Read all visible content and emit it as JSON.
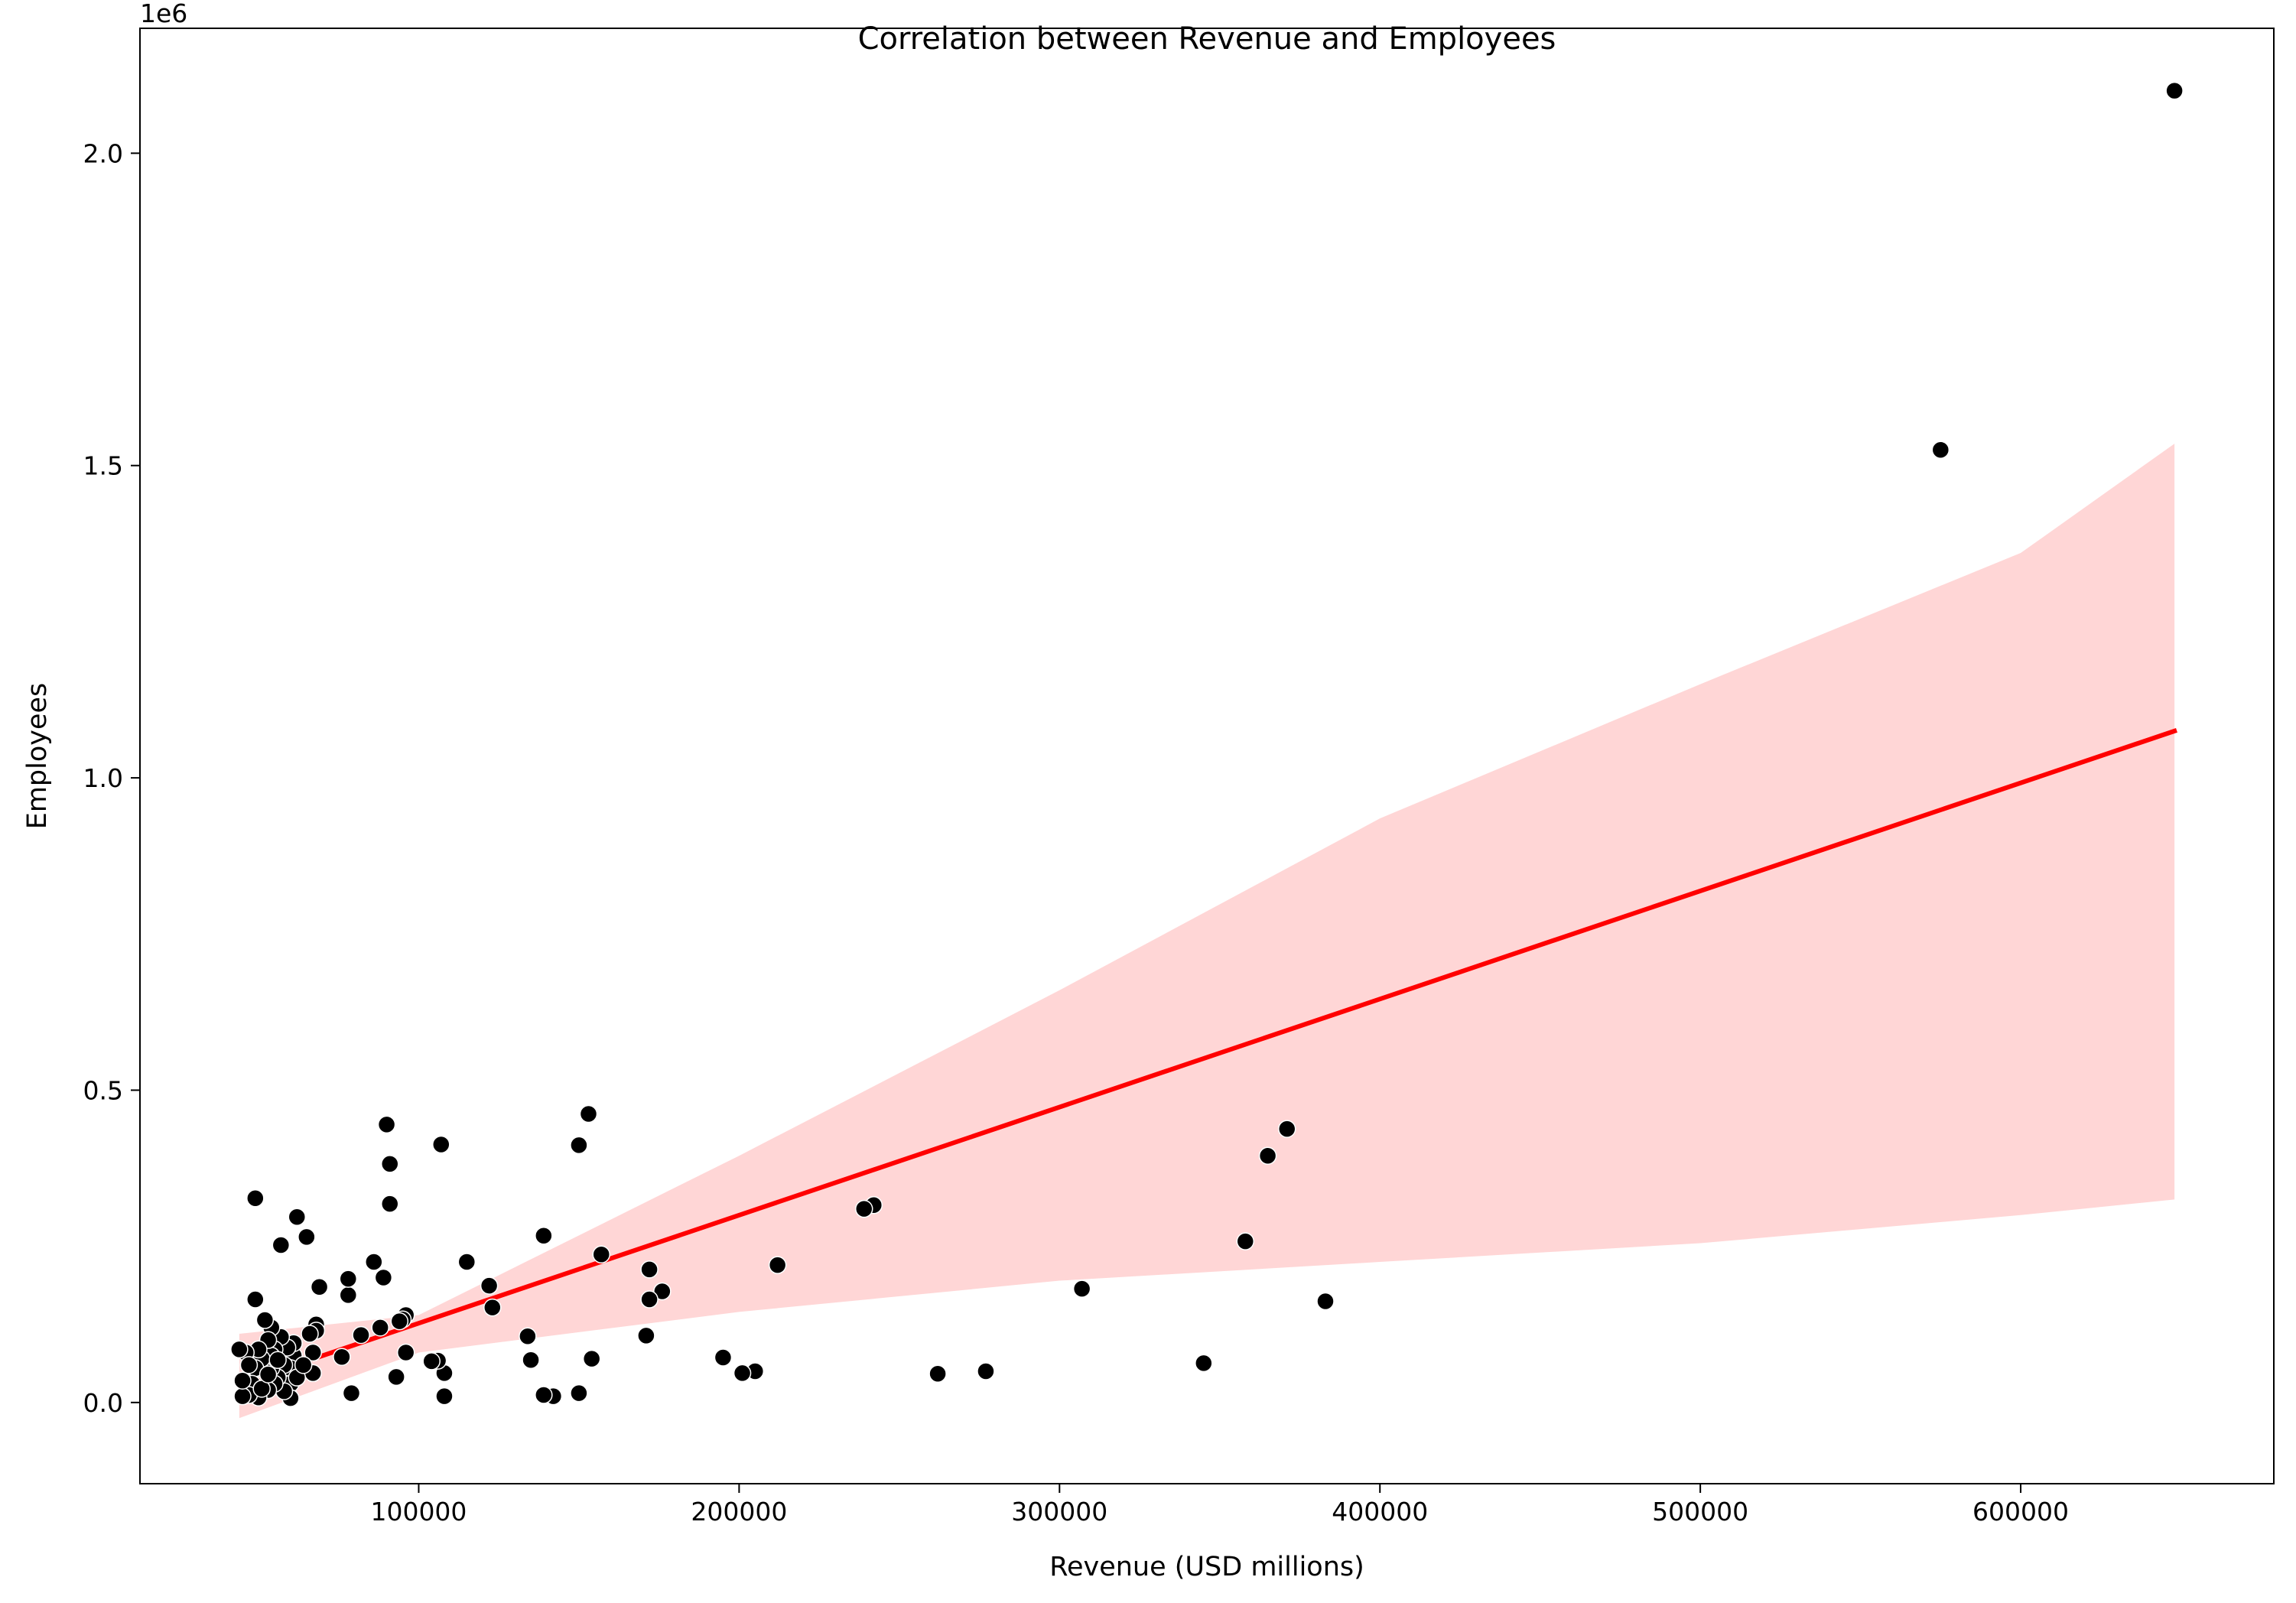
{
  "chart_data": {
    "type": "scatter",
    "title": "Correlation between Revenue and Employees",
    "xlabel": "Revenue (USD millions)",
    "ylabel": "Employees",
    "y_offset_label": "1e6",
    "xlim": [
      13000,
      679000
    ],
    "ylim": [
      -130000,
      2200000
    ],
    "xticks": [
      100000,
      200000,
      300000,
      400000,
      500000,
      600000
    ],
    "xtick_labels": [
      "100000",
      "200000",
      "300000",
      "400000",
      "500000",
      "600000"
    ],
    "yticks": [
      0,
      500000,
      1000000,
      1500000,
      2000000
    ],
    "ytick_labels": [
      "0.0",
      "0.5",
      "1.0",
      "1.5",
      "2.0"
    ],
    "grid": false,
    "colors": {
      "points": "#000000",
      "point_edge": "#ffffff",
      "regression_line": "#ff0000",
      "confidence_band": "#ffd6d6"
    },
    "regression": {
      "x": [
        44000,
        648000
      ],
      "y": [
        30000,
        1075000
      ]
    },
    "confidence_band": {
      "x": [
        44000,
        100000,
        200000,
        300000,
        400000,
        500000,
        600000,
        648000
      ],
      "lower": [
        -25000,
        80000,
        145000,
        195000,
        225000,
        255000,
        300000,
        325000
      ],
      "upper": [
        110000,
        140000,
        395000,
        660000,
        935000,
        1150000,
        1360000,
        1535000
      ]
    },
    "points": [
      [
        648000,
        2100000
      ],
      [
        575000,
        1525000
      ],
      [
        371000,
        438000
      ],
      [
        365000,
        395000
      ],
      [
        358000,
        258000
      ],
      [
        383000,
        162000
      ],
      [
        345000,
        63000
      ],
      [
        307000,
        182000
      ],
      [
        277000,
        50000
      ],
      [
        262000,
        46000
      ],
      [
        242000,
        316000
      ],
      [
        239000,
        310000
      ],
      [
        212000,
        220000
      ],
      [
        205000,
        50000
      ],
      [
        201000,
        47000
      ],
      [
        195000,
        72000
      ],
      [
        176000,
        178000
      ],
      [
        172000,
        213000
      ],
      [
        172000,
        165000
      ],
      [
        171000,
        107000
      ],
      [
        157000,
        237000
      ],
      [
        154000,
        70000
      ],
      [
        153000,
        462000
      ],
      [
        150000,
        412000
      ],
      [
        150000,
        15000
      ],
      [
        142000,
        10000
      ],
      [
        139000,
        267000
      ],
      [
        139000,
        12000
      ],
      [
        135000,
        68000
      ],
      [
        134000,
        106000
      ],
      [
        123000,
        152000
      ],
      [
        122000,
        187000
      ],
      [
        115000,
        225000
      ],
      [
        108000,
        47000
      ],
      [
        107000,
        413000
      ],
      [
        108000,
        10000
      ],
      [
        106000,
        67000
      ],
      [
        104000,
        66000
      ],
      [
        96000,
        80000
      ],
      [
        96000,
        140000
      ],
      [
        95000,
        133000
      ],
      [
        94000,
        130000
      ],
      [
        93000,
        41000
      ],
      [
        91000,
        318000
      ],
      [
        91000,
        382000
      ],
      [
        90000,
        445000
      ],
      [
        89000,
        200000
      ],
      [
        88000,
        120000
      ],
      [
        86000,
        225000
      ],
      [
        82000,
        108000
      ],
      [
        78000,
        172000
      ],
      [
        78000,
        198000
      ],
      [
        79000,
        15000
      ],
      [
        76000,
        73000
      ],
      [
        69000,
        185000
      ],
      [
        68000,
        125000
      ],
      [
        68000,
        115000
      ],
      [
        67000,
        47000
      ],
      [
        67000,
        80000
      ],
      [
        65000,
        265000
      ],
      [
        62000,
        297000
      ],
      [
        61000,
        75000
      ],
      [
        61000,
        95000
      ],
      [
        60000,
        55000
      ],
      [
        60000,
        30000
      ],
      [
        60000,
        7000
      ],
      [
        59000,
        88000
      ],
      [
        58000,
        60000
      ],
      [
        58000,
        18000
      ],
      [
        57000,
        252000
      ],
      [
        57000,
        105000
      ],
      [
        56000,
        40000
      ],
      [
        55000,
        85000
      ],
      [
        55000,
        30000
      ],
      [
        54000,
        75000
      ],
      [
        54000,
        120000
      ],
      [
        54000,
        55000
      ],
      [
        53000,
        20000
      ],
      [
        53000,
        100000
      ],
      [
        52000,
        132000
      ],
      [
        52000,
        50000
      ],
      [
        51000,
        70000
      ],
      [
        50000,
        85000
      ],
      [
        50000,
        8000
      ],
      [
        49000,
        327000
      ],
      [
        49000,
        165000
      ],
      [
        49000,
        55000
      ],
      [
        48000,
        30000
      ],
      [
        47000,
        12000
      ],
      [
        46000,
        80000
      ],
      [
        45000,
        10000
      ],
      [
        45000,
        35000
      ],
      [
        44000,
        85000
      ],
      [
        62000,
        40000
      ],
      [
        56000,
        68000
      ],
      [
        64000,
        60000
      ],
      [
        51000,
        22000
      ],
      [
        66000,
        110000
      ],
      [
        47000,
        60000
      ],
      [
        53000,
        45000
      ]
    ]
  }
}
